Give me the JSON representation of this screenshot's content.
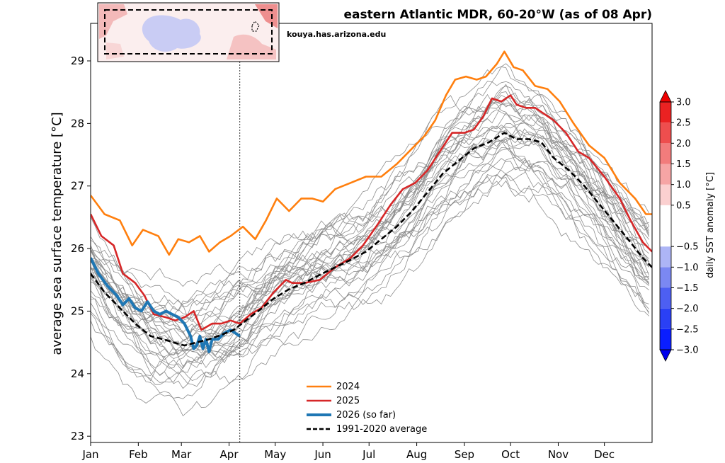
{
  "chart_data": {
    "type": "line",
    "title": "eastern Atlantic MDR, 60-20°W (as of 08 Apr)",
    "source": "kouya.has.arizona.edu",
    "ylabel": "average sea surface temperature [°C]",
    "xlabel": "",
    "ylim": [
      22.9,
      29.6
    ],
    "xlim": [
      1,
      366
    ],
    "current_day": 98,
    "x_ticks": [
      {
        "day": 1,
        "label": "Jan"
      },
      {
        "day": 32,
        "label": "Feb"
      },
      {
        "day": 60,
        "label": "Mar"
      },
      {
        "day": 91,
        "label": "Apr"
      },
      {
        "day": 121,
        "label": "May"
      },
      {
        "day": 152,
        "label": "Jun"
      },
      {
        "day": 182,
        "label": "Jul"
      },
      {
        "day": 213,
        "label": "Aug"
      },
      {
        "day": 244,
        "label": "Sep"
      },
      {
        "day": 274,
        "label": "Oct"
      },
      {
        "day": 305,
        "label": "Nov"
      },
      {
        "day": 335,
        "label": "Dec"
      }
    ],
    "y_ticks": [
      {
        "value": 23,
        "label": "23"
      },
      {
        "value": 24,
        "label": "24"
      },
      {
        "value": 25,
        "label": "25"
      },
      {
        "value": 26,
        "label": "26"
      },
      {
        "value": 27,
        "label": "27"
      },
      {
        "value": 28,
        "label": "28"
      },
      {
        "value": 29,
        "label": "29"
      }
    ],
    "series": [
      {
        "name": "2024",
        "color": "#ff7f0e",
        "points": [
          [
            1,
            26.85
          ],
          [
            10,
            26.55
          ],
          [
            20,
            26.45
          ],
          [
            28,
            26.05
          ],
          [
            35,
            26.3
          ],
          [
            45,
            26.2
          ],
          [
            52,
            25.9
          ],
          [
            58,
            26.15
          ],
          [
            65,
            26.1
          ],
          [
            72,
            26.2
          ],
          [
            78,
            25.95
          ],
          [
            85,
            26.1
          ],
          [
            92,
            26.2
          ],
          [
            100,
            26.35
          ],
          [
            108,
            26.15
          ],
          [
            115,
            26.45
          ],
          [
            122,
            26.8
          ],
          [
            130,
            26.6
          ],
          [
            138,
            26.8
          ],
          [
            145,
            26.8
          ],
          [
            152,
            26.75
          ],
          [
            160,
            26.95
          ],
          [
            170,
            27.05
          ],
          [
            180,
            27.15
          ],
          [
            190,
            27.15
          ],
          [
            200,
            27.35
          ],
          [
            210,
            27.6
          ],
          [
            218,
            27.8
          ],
          [
            225,
            28.05
          ],
          [
            232,
            28.45
          ],
          [
            238,
            28.7
          ],
          [
            245,
            28.75
          ],
          [
            252,
            28.7
          ],
          [
            258,
            28.75
          ],
          [
            265,
            28.95
          ],
          [
            270,
            29.15
          ],
          [
            276,
            28.9
          ],
          [
            282,
            28.85
          ],
          [
            290,
            28.6
          ],
          [
            298,
            28.55
          ],
          [
            306,
            28.35
          ],
          [
            315,
            28.0
          ],
          [
            325,
            27.65
          ],
          [
            335,
            27.45
          ],
          [
            345,
            27.05
          ],
          [
            355,
            26.8
          ],
          [
            362,
            26.55
          ],
          [
            366,
            26.55
          ]
        ]
      },
      {
        "name": "2025",
        "color": "#d62728",
        "points": [
          [
            1,
            26.55
          ],
          [
            8,
            26.2
          ],
          [
            16,
            26.05
          ],
          [
            22,
            25.6
          ],
          [
            30,
            25.45
          ],
          [
            36,
            25.25
          ],
          [
            42,
            24.95
          ],
          [
            50,
            24.9
          ],
          [
            56,
            24.85
          ],
          [
            62,
            24.9
          ],
          [
            68,
            25.0
          ],
          [
            73,
            24.7
          ],
          [
            80,
            24.8
          ],
          [
            86,
            24.8
          ],
          [
            92,
            24.85
          ],
          [
            98,
            24.8
          ],
          [
            105,
            24.95
          ],
          [
            112,
            25.05
          ],
          [
            120,
            25.3
          ],
          [
            128,
            25.5
          ],
          [
            132,
            25.45
          ],
          [
            140,
            25.45
          ],
          [
            150,
            25.5
          ],
          [
            160,
            25.7
          ],
          [
            170,
            25.85
          ],
          [
            178,
            26.05
          ],
          [
            188,
            26.4
          ],
          [
            196,
            26.7
          ],
          [
            204,
            26.95
          ],
          [
            212,
            27.05
          ],
          [
            220,
            27.25
          ],
          [
            228,
            27.55
          ],
          [
            236,
            27.85
          ],
          [
            244,
            27.85
          ],
          [
            250,
            27.9
          ],
          [
            256,
            28.1
          ],
          [
            262,
            28.4
          ],
          [
            268,
            28.35
          ],
          [
            274,
            28.45
          ],
          [
            278,
            28.3
          ],
          [
            284,
            28.25
          ],
          [
            290,
            28.25
          ],
          [
            296,
            28.15
          ],
          [
            302,
            28.05
          ],
          [
            310,
            27.85
          ],
          [
            318,
            27.55
          ],
          [
            325,
            27.45
          ],
          [
            335,
            27.15
          ],
          [
            345,
            26.8
          ],
          [
            352,
            26.45
          ],
          [
            360,
            26.1
          ],
          [
            366,
            25.95
          ]
        ]
      },
      {
        "name": "2026 (so far)",
        "color": "#1f77b4",
        "points": [
          [
            1,
            25.85
          ],
          [
            6,
            25.6
          ],
          [
            12,
            25.4
          ],
          [
            18,
            25.25
          ],
          [
            22,
            25.1
          ],
          [
            26,
            25.2
          ],
          [
            30,
            25.05
          ],
          [
            34,
            25.0
          ],
          [
            38,
            25.15
          ],
          [
            42,
            25.0
          ],
          [
            46,
            24.95
          ],
          [
            50,
            25.0
          ],
          [
            54,
            24.95
          ],
          [
            58,
            24.9
          ],
          [
            62,
            24.8
          ],
          [
            66,
            24.6
          ],
          [
            68,
            24.4
          ],
          [
            70,
            24.45
          ],
          [
            72,
            24.6
          ],
          [
            74,
            24.4
          ],
          [
            76,
            24.55
          ],
          [
            78,
            24.35
          ],
          [
            80,
            24.55
          ],
          [
            84,
            24.55
          ],
          [
            88,
            24.65
          ],
          [
            92,
            24.7
          ],
          [
            95,
            24.65
          ],
          [
            98,
            24.6
          ]
        ]
      },
      {
        "name": "1991-2020 average",
        "color": "#000000",
        "dashed": true,
        "points": [
          [
            1,
            25.6
          ],
          [
            10,
            25.3
          ],
          [
            20,
            25.05
          ],
          [
            30,
            24.8
          ],
          [
            40,
            24.6
          ],
          [
            48,
            24.55
          ],
          [
            55,
            24.5
          ],
          [
            62,
            24.45
          ],
          [
            70,
            24.5
          ],
          [
            78,
            24.55
          ],
          [
            86,
            24.62
          ],
          [
            94,
            24.7
          ],
          [
            102,
            24.85
          ],
          [
            110,
            25.0
          ],
          [
            120,
            25.2
          ],
          [
            130,
            25.35
          ],
          [
            140,
            25.45
          ],
          [
            150,
            25.58
          ],
          [
            160,
            25.7
          ],
          [
            170,
            25.82
          ],
          [
            180,
            25.95
          ],
          [
            190,
            26.15
          ],
          [
            200,
            26.35
          ],
          [
            210,
            26.6
          ],
          [
            220,
            26.9
          ],
          [
            230,
            27.2
          ],
          [
            240,
            27.4
          ],
          [
            250,
            27.6
          ],
          [
            260,
            27.7
          ],
          [
            270,
            27.85
          ],
          [
            278,
            27.75
          ],
          [
            286,
            27.75
          ],
          [
            294,
            27.7
          ],
          [
            302,
            27.45
          ],
          [
            312,
            27.25
          ],
          [
            322,
            27.0
          ],
          [
            332,
            26.7
          ],
          [
            342,
            26.4
          ],
          [
            352,
            26.1
          ],
          [
            360,
            25.85
          ],
          [
            366,
            25.7
          ]
        ]
      }
    ],
    "background_series_count": 34,
    "legend_location": "bottom-center",
    "colorbar": {
      "label": "daily SST anomaly [°C]",
      "extend": "both",
      "bins": [
        {
          "from": -3.0,
          "to": -2.5,
          "color": "#0a1eff"
        },
        {
          "from": -2.5,
          "to": -2.0,
          "color": "#2a40f5"
        },
        {
          "from": -2.0,
          "to": -1.5,
          "color": "#4d5ff2"
        },
        {
          "from": -1.5,
          "to": -1.0,
          "color": "#7b88f2"
        },
        {
          "from": -1.0,
          "to": -0.5,
          "color": "#adb5f6"
        },
        {
          "from": -0.5,
          "to": 0.5,
          "color": "#ffffff"
        },
        {
          "from": 0.5,
          "to": 1.0,
          "color": "#fbd0d0"
        },
        {
          "from": 1.0,
          "to": 1.5,
          "color": "#f6a5a5"
        },
        {
          "from": 1.5,
          "to": 2.0,
          "color": "#f27c7c"
        },
        {
          "from": 2.0,
          "to": 2.5,
          "color": "#ee4e4e"
        },
        {
          "from": 2.5,
          "to": 3.0,
          "color": "#ea2222"
        }
      ],
      "below_color": "#0000ee",
      "above_color": "#ee0000",
      "ticks": [
        {
          "value": 3.0,
          "label": "3.0"
        },
        {
          "value": 2.5,
          "label": "2.5"
        },
        {
          "value": 2.0,
          "label": "2.0"
        },
        {
          "value": 1.5,
          "label": "1.5"
        },
        {
          "value": 1.0,
          "label": "1.0"
        },
        {
          "value": 0.5,
          "label": "0.5"
        },
        {
          "value": -0.5,
          "label": "−0.5"
        },
        {
          "value": -1.0,
          "label": "−1.0"
        },
        {
          "value": -1.5,
          "label": "−1.5"
        },
        {
          "value": -2.0,
          "label": "−2.0"
        },
        {
          "value": -2.5,
          "label": "−2.5"
        },
        {
          "value": -3.0,
          "label": "−3.0"
        }
      ]
    }
  }
}
